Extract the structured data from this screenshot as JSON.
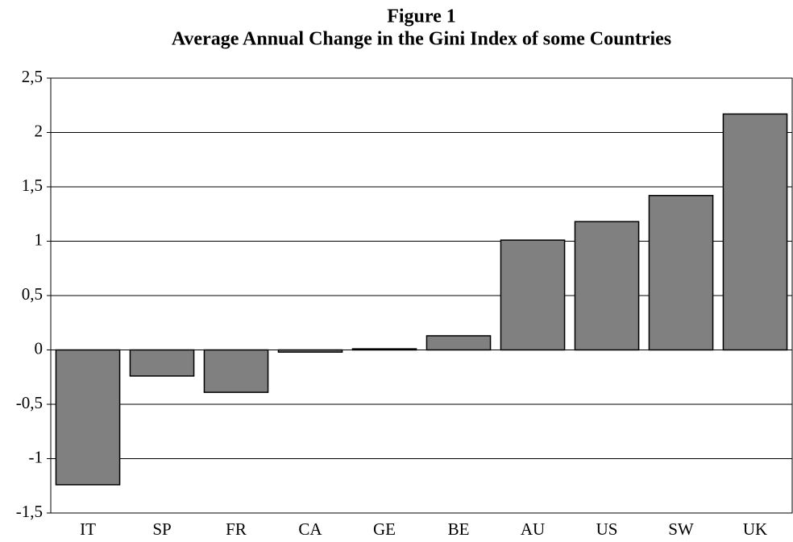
{
  "chart_data": {
    "type": "bar",
    "title": "Figure 1",
    "subtitle": "Average Annual Change in the Gini Index of some Countries",
    "categories": [
      "IT",
      "SP",
      "FR",
      "CA",
      "GE",
      "BE",
      "AU",
      "US",
      "SW",
      "UK"
    ],
    "values": [
      -1.24,
      -0.24,
      -0.39,
      -0.02,
      0.01,
      0.13,
      1.01,
      1.18,
      1.42,
      2.17
    ],
    "color": "#808080",
    "ylim": [
      -1.5,
      2.5
    ],
    "yticks": [
      {
        "value": -1.5,
        "label": "-1,5"
      },
      -1,
      {
        "value": -0.5,
        "label": "-0,5"
      },
      0,
      {
        "value": 0.5,
        "label": "0,5"
      },
      1,
      {
        "value": 1.5,
        "label": "1,5"
      },
      2,
      {
        "value": 2.5,
        "label": "2,5"
      }
    ],
    "grid": true
  }
}
